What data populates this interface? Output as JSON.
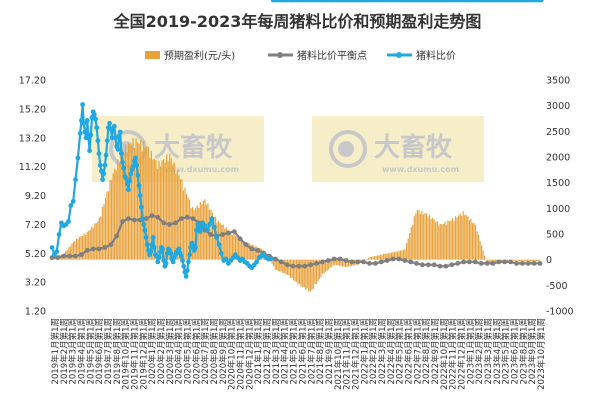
{
  "chart_data": {
    "type": "bar+line",
    "title": "全国2019-2023年每周猪料比价和预期盈利走势图",
    "watermark": {
      "brand": "大畜牧",
      "url": "www.dxumu.com"
    },
    "colors": {
      "bar": "#E8A23C",
      "breakeven": "#7F7F7F",
      "ratio": "#21A8E0",
      "watermark_box": "#F5EEC8",
      "watermark_text": "#C8C8C8"
    },
    "legend": {
      "position": "top",
      "items": [
        {
          "key": "profit",
          "label": "预期盈利(元/头)"
        },
        {
          "key": "breakeven",
          "label": "猪料比价平衡点"
        },
        {
          "key": "ratio",
          "label": "猪料比价"
        }
      ]
    },
    "y_left": {
      "min": 1.2,
      "max": 17.2,
      "ticks": [
        "1.20",
        "3.20",
        "5.20",
        "7.20",
        "9.20",
        "11.20",
        "13.20",
        "15.20",
        "17.20"
      ]
    },
    "y_right": {
      "min": -1000,
      "max": 3500,
      "ticks": [
        "-1000",
        "-500",
        "0",
        "500",
        "1000",
        "1500",
        "2000",
        "2500",
        "3000",
        "3500"
      ]
    },
    "x_labels": [
      "2019年1月第1周",
      "2019年2月第1周",
      "2019年3月第1周",
      "2019年4月第1周",
      "2019年5月第1周",
      "2019年6月第1周",
      "2019年7月第1周",
      "2019年8月第1周",
      "2019年10月第1周",
      "2019年11月第1周",
      "2019年12月第1周",
      "2020年1月第1周",
      "2020年2月第1周",
      "2020年3月第1周",
      "2020年4月第1周",
      "2020年5月第1周",
      "2020年6月第1周",
      "2020年7月第1周",
      "2020年8月第1周",
      "2020年9月第1周",
      "2020年10月第1周",
      "2020年11月第1周",
      "2020年12月第1周",
      "2021年1月第1周",
      "2021年2月第1周",
      "2021年3月第1周",
      "2021年4月第1周",
      "2021年5月第1周",
      "2021年6月第1周",
      "2021年7月第1周",
      "2021年8月第1周",
      "2021年9月第1周",
      "2021年10月第1周",
      "2021年11月第1周",
      "2021年12月第1周",
      "2022年1月第1周",
      "2022年2月第1周",
      "2022年3月第1周",
      "2022年4月第1周",
      "2022年5月第1周",
      "2022年6月第1周",
      "2022年7月第1周",
      "2022年8月第1周",
      "2022年9月第1周",
      "2022年10月第1周",
      "2022年11月第1周",
      "2022年12月第1周",
      "2023年1月第1周",
      "2023年2月第1周",
      "2023年3月第1周",
      "2023年4月第1周",
      "2023年5月第1周",
      "2023年6月第1周",
      "2023年8月第1周",
      "2023年9月第1周",
      "2023年10月第1周"
    ],
    "series": [
      {
        "key": "ratio",
        "name": "猪料比价",
        "axis": "left",
        "week_index": [
          0,
          4,
          8,
          12,
          16,
          20,
          24,
          28,
          32,
          36,
          40,
          44,
          48,
          50,
          52,
          54,
          56,
          58,
          60,
          62,
          64,
          66,
          68,
          70,
          72,
          74,
          76,
          78,
          80,
          82,
          84,
          86,
          88,
          90,
          92,
          94,
          96,
          98,
          100,
          102,
          104,
          106,
          108,
          110,
          112,
          114,
          116,
          118,
          120,
          122,
          124,
          126,
          128,
          130,
          132,
          134,
          136,
          138,
          140,
          142,
          144,
          146,
          148,
          150,
          152,
          154,
          156,
          158,
          160,
          162,
          164,
          166,
          168,
          170,
          172,
          174,
          176,
          178,
          180,
          182,
          184,
          186,
          188,
          190,
          192,
          194,
          196,
          198,
          200,
          202,
          204,
          206,
          208,
          210,
          212,
          214,
          216,
          218,
          220,
          222,
          224,
          226,
          228,
          230,
          232,
          234,
          236,
          238,
          240,
          242,
          244,
          246,
          248,
          250,
          252,
          254,
          256,
          260,
          264,
          268,
          272,
          276,
          280,
          284,
          288,
          292,
          296,
          300,
          304,
          308,
          312,
          316,
          320,
          324,
          328,
          332,
          336,
          340,
          344,
          348,
          352,
          356,
          360,
          364,
          368,
          372,
          376,
          380,
          384,
          388,
          392,
          396,
          400,
          404,
          408,
          412,
          416,
          420,
          424,
          428,
          432,
          436,
          440,
          444,
          448,
          452,
          456,
          460,
          464,
          468,
          472,
          476,
          480,
          484,
          488,
          492,
          496,
          500,
          504,
          508,
          512,
          516,
          520,
          524,
          528,
          532,
          536,
          540,
          544,
          548,
          552,
          556,
          560,
          564,
          568,
          572,
          576,
          580,
          584,
          588,
          592,
          596,
          600,
          604,
          608,
          612,
          616,
          620,
          624,
          628,
          632,
          636,
          640,
          644,
          648,
          652,
          656,
          660,
          664,
          668,
          672,
          676,
          680,
          684,
          688,
          692,
          696,
          700,
          704,
          708,
          712,
          716,
          720,
          724,
          728,
          732,
          736,
          740,
          744,
          748,
          752,
          756,
          760,
          764,
          768,
          772,
          776,
          780,
          784,
          788,
          792,
          796,
          800,
          804,
          808,
          812,
          816,
          820,
          824,
          828,
          832
        ],
        "values": [
          5.6,
          5.1,
          5.3,
          6.5,
          7.3,
          7.1,
          7.2,
          7.4,
          8.5,
          8.8,
          10.3,
          11.8,
          13.5,
          14.4,
          15.5,
          14.2,
          13.6,
          13.2,
          14.4,
          13.2,
          12.3,
          13.4,
          14.6,
          15.0,
          14.8,
          14.5,
          13.9,
          13.0,
          12.1,
          11.3,
          10.9,
          10.3,
          10.7,
          11.3,
          12.0,
          13.0,
          13.9,
          14.2,
          13.8,
          13.2,
          13.8,
          14.0,
          13.2,
          12.6,
          12.4,
          13.3,
          13.6,
          12.1,
          11.5,
          11.1,
          10.5,
          10.4,
          10.0,
          9.6,
          10.2,
          10.7,
          11.0,
          11.2,
          11.6,
          11.8,
          11.3,
          10.6,
          9.9,
          9.2,
          8.4,
          7.6,
          7.2,
          6.8,
          6.3,
          5.8,
          5.4,
          5.1,
          5.3,
          5.8,
          6.3,
          5.6,
          5.1,
          5.0,
          4.6,
          4.9,
          5.3,
          5.6,
          5.5,
          4.7,
          4.3,
          4.5,
          5.2,
          5.5,
          5.4,
          5.2,
          4.8,
          4.6,
          4.9,
          5.1,
          5.3,
          5.4,
          5.5,
          5.2,
          5.0,
          4.7,
          4.3,
          3.9,
          3.6,
          4.0,
          4.6,
          5.1,
          5.6,
          5.9,
          5.7,
          5.4,
          5.6,
          6.8,
          7.2,
          6.9,
          6.7,
          7.0,
          7.3,
          7.1,
          6.8,
          7.2,
          7.6,
          7.0,
          6.3,
          5.8,
          5.2,
          4.7,
          4.8,
          4.5,
          4.7,
          4.9,
          5.1,
          4.9,
          4.7,
          4.8,
          4.6,
          4.5,
          4.3,
          4.2,
          4.4,
          4.6,
          4.9,
          5.0,
          5.1,
          4.9,
          4.8,
          4.8
        ],
        "style": "line+markers"
      },
      {
        "key": "breakeven",
        "name": "猪料比价平衡点",
        "axis": "left",
        "week_index": [
          0,
          10,
          20,
          30,
          40,
          50,
          60,
          70,
          80,
          90,
          100,
          110,
          120,
          130,
          140,
          150,
          160,
          170,
          180,
          190,
          200,
          210,
          220,
          230,
          240,
          250,
          260,
          270,
          280,
          290,
          300,
          310,
          320,
          330,
          340,
          350,
          360,
          370,
          380,
          390,
          400,
          410,
          420,
          430,
          440,
          450,
          460,
          470,
          480,
          490,
          500,
          510,
          520,
          530,
          540,
          550,
          560,
          570,
          580,
          590,
          600,
          610,
          620,
          630,
          640,
          650,
          660,
          670,
          680,
          690,
          700,
          710,
          720,
          730,
          740,
          750,
          760,
          770,
          780,
          790,
          800,
          810,
          820,
          830
        ],
        "values": [
          4.9,
          4.9,
          5.0,
          5.0,
          5.0,
          5.1,
          5.4,
          5.5,
          5.5,
          5.6,
          5.8,
          6.4,
          7.4,
          7.6,
          7.5,
          7.5,
          7.6,
          7.8,
          7.7,
          7.3,
          7.2,
          7.3,
          7.6,
          7.7,
          7.6,
          7.3,
          6.8,
          6.5,
          6.4,
          6.5,
          6.6,
          6.7,
          6.2,
          5.8,
          5.5,
          5.4,
          5.2,
          5.0,
          4.8,
          4.6,
          4.4,
          4.3,
          4.3,
          4.3,
          4.4,
          4.5,
          4.6,
          4.7,
          4.8,
          4.8,
          4.7,
          4.6,
          4.6,
          4.6,
          4.5,
          4.5,
          4.6,
          4.7,
          4.8,
          4.8,
          4.7,
          4.6,
          4.5,
          4.4,
          4.4,
          4.4,
          4.3,
          4.3,
          4.4,
          4.5,
          4.6,
          4.6,
          4.6,
          4.5,
          4.5,
          4.5,
          4.6,
          4.6,
          4.6,
          4.5,
          4.5,
          4.5,
          4.5,
          4.5
        ],
        "style": "line+markers"
      },
      {
        "key": "profit",
        "name": "预期盈利(元/头)",
        "axis": "right",
        "week_index": [
          0,
          20,
          40,
          60,
          80,
          100,
          120,
          140,
          160,
          180,
          200,
          220,
          240,
          260,
          280,
          300,
          320,
          340,
          360,
          380,
          400,
          420,
          440,
          460,
          480,
          500,
          520,
          540,
          560,
          580,
          600,
          620,
          640,
          660,
          680,
          700,
          720,
          740,
          760,
          780,
          800,
          820,
          830
        ],
        "values": [
          50,
          120,
          400,
          550,
          800,
          1600,
          2200,
          2400,
          2300,
          1900,
          2100,
          1600,
          1000,
          1200,
          800,
          600,
          400,
          300,
          200,
          -200,
          -300,
          -500,
          -650,
          -300,
          -100,
          -150,
          -100,
          50,
          100,
          150,
          200,
          1000,
          900,
          700,
          800,
          950,
          700,
          -80,
          -50,
          -20,
          -30,
          -40,
          -20
        ],
        "style": "bars"
      }
    ]
  }
}
